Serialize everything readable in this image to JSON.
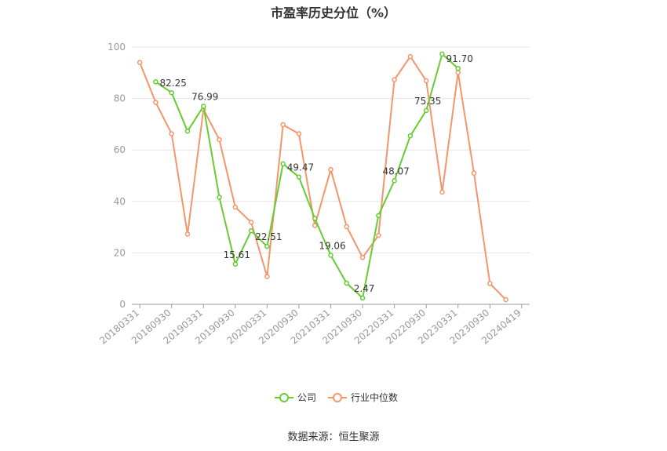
{
  "chart_data": {
    "type": "line",
    "title": "市盈率历史分位（%）",
    "source": "数据来源：恒生聚源",
    "x": [
      "20180331",
      "20180630",
      "20180930",
      "20181231",
      "20190331",
      "20190630",
      "20190930",
      "20191231",
      "20200331",
      "20200630",
      "20200930",
      "20201231",
      "20210331",
      "20210630",
      "20210930",
      "20211231",
      "20220331",
      "20220630",
      "20220930",
      "20221231",
      "20230331",
      "20230630",
      "20230930",
      "20231231",
      "20240419"
    ],
    "x_tick_labels": [
      "20180331",
      "20180930",
      "20190331",
      "20190930",
      "20200331",
      "20200930",
      "20210331",
      "20210930",
      "20220331",
      "20220930",
      "20230331",
      "20230930",
      "20240419"
    ],
    "ylim": [
      0,
      100
    ],
    "y_ticks": [
      0,
      20,
      40,
      60,
      80,
      100
    ],
    "grid": true,
    "legend_position": "bottom",
    "series": [
      {
        "name": "公司",
        "color": "#66cc33",
        "values": [
          null,
          86.5,
          82.25,
          67.3,
          76.99,
          41.6,
          15.61,
          28.6,
          22.51,
          54.6,
          49.47,
          33.4,
          19.06,
          8.2,
          2.47,
          34.5,
          48.07,
          65.5,
          75.35,
          97.3,
          91.7,
          null,
          null,
          null,
          null
        ],
        "labels": [
          {
            "index": 2,
            "text": "82.25"
          },
          {
            "index": 4,
            "text": "76.99"
          },
          {
            "index": 6,
            "text": "15.61"
          },
          {
            "index": 8,
            "text": "22.51"
          },
          {
            "index": 10,
            "text": "49.47"
          },
          {
            "index": 12,
            "text": "19.06"
          },
          {
            "index": 14,
            "text": "2.47"
          },
          {
            "index": 16,
            "text": "48.07"
          },
          {
            "index": 18,
            "text": "75.35"
          },
          {
            "index": 20,
            "text": "91.70"
          }
        ]
      },
      {
        "name": "行业中位数",
        "color": "#f4956a",
        "values": [
          94.0,
          78.5,
          66.3,
          27.3,
          75.8,
          64.0,
          37.8,
          31.9,
          10.8,
          69.8,
          66.3,
          30.6,
          52.4,
          30.2,
          18.2,
          26.8,
          87.3,
          96.3,
          86.9,
          43.6,
          90.1,
          51.0,
          8.1,
          1.8,
          null
        ]
      }
    ]
  }
}
